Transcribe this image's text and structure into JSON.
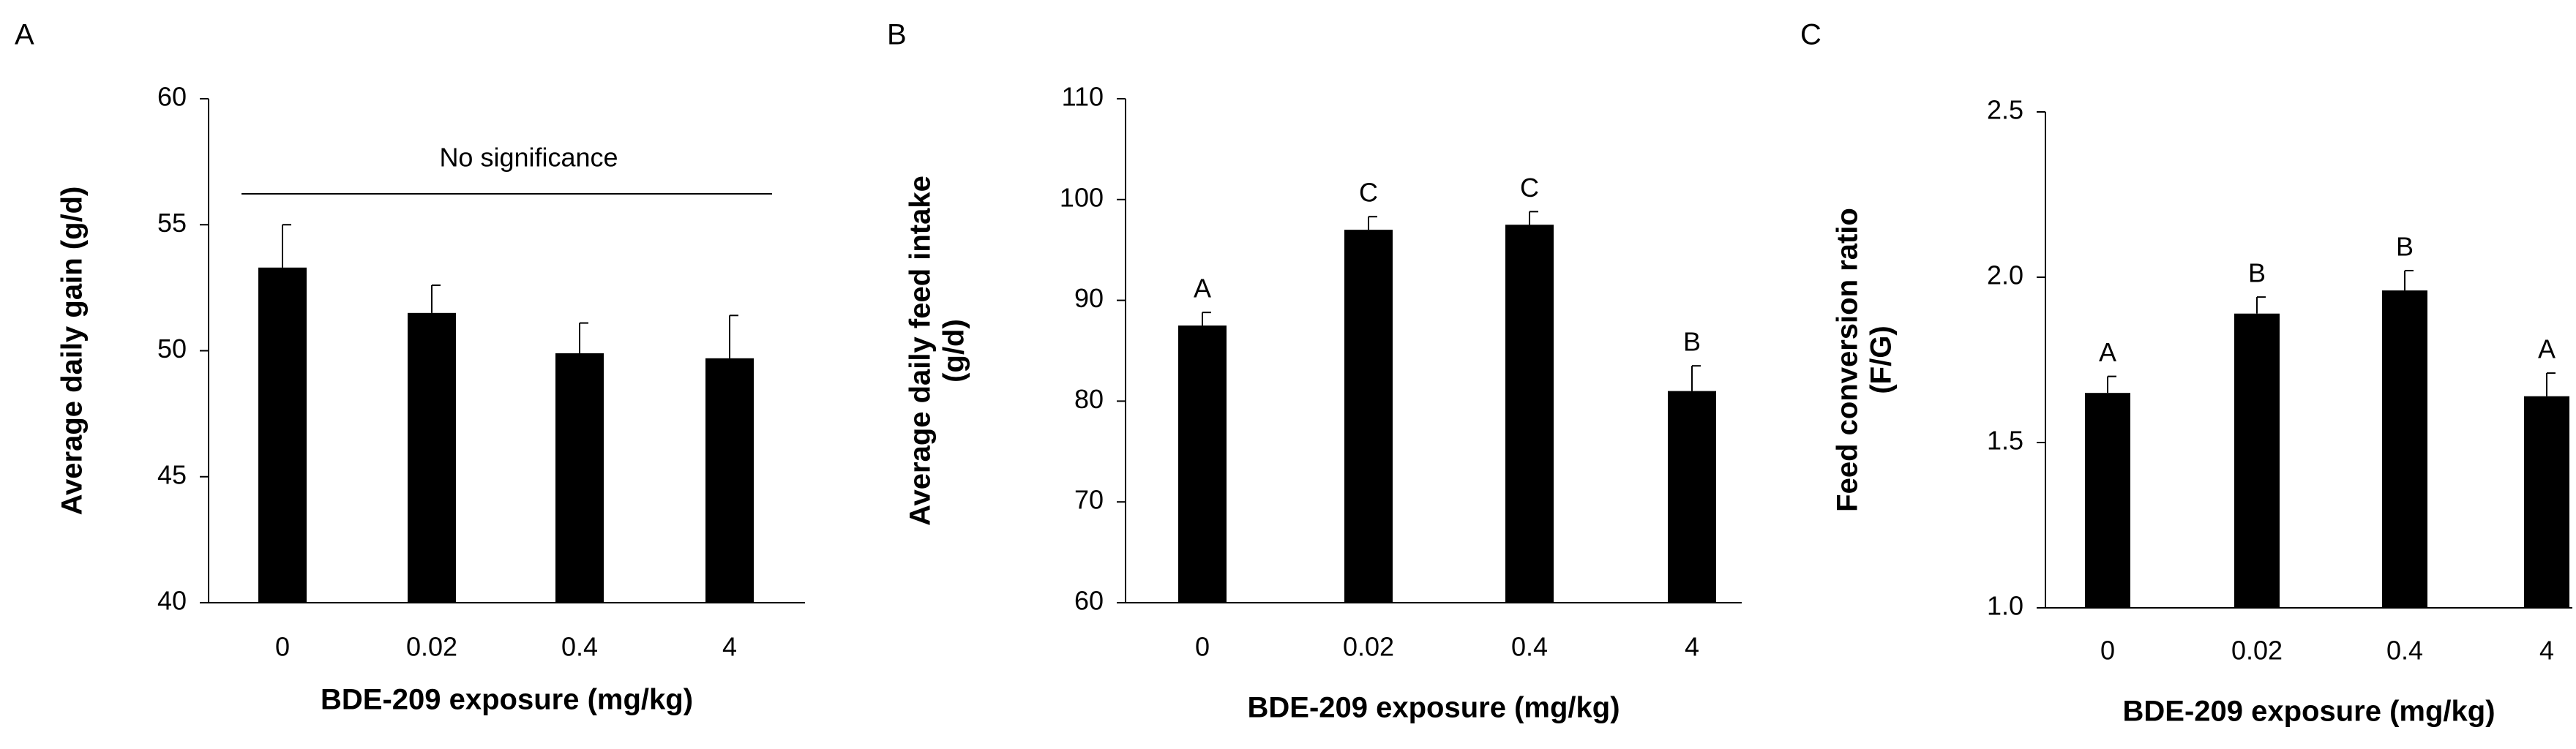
{
  "chart_data": [
    {
      "type": "bar",
      "panel_label": "A",
      "y_label": "Average daily gain (g/d)",
      "x_label": "BDE-209 exposure (mg/kg)",
      "annotation": "No significance",
      "categories": [
        "0",
        "0.02",
        "0.4",
        "4"
      ],
      "values": [
        53.3,
        51.5,
        49.9,
        49.7
      ],
      "errors": [
        1.7,
        1.1,
        1.2,
        1.7
      ],
      "ylim": [
        40,
        60
      ],
      "yticks": [
        40,
        45,
        50,
        55,
        60
      ],
      "color": "#000000"
    },
    {
      "type": "bar",
      "panel_label": "B",
      "y_label": [
        "Average daily feed intake",
        "(g/d)"
      ],
      "x_label": "BDE-209 exposure (mg/kg)",
      "categories": [
        "0",
        "0.02",
        "0.4",
        "4"
      ],
      "values": [
        87.5,
        97,
        97.5,
        81
      ],
      "errors": [
        1.3,
        1.3,
        1.3,
        2.5
      ],
      "letters": [
        "A",
        "C",
        "C",
        "B"
      ],
      "ylim": [
        60,
        110
      ],
      "yticks": [
        60,
        70,
        80,
        90,
        100,
        110
      ],
      "color": "#000000"
    },
    {
      "type": "bar",
      "panel_label": "C",
      "y_label": [
        "Feed conversion ratio",
        "(F/G)"
      ],
      "x_label": "BDE-209 exposure (mg/kg)",
      "categories": [
        "0",
        "0.02",
        "0.4",
        "4"
      ],
      "values": [
        1.65,
        1.89,
        1.96,
        1.64
      ],
      "errors": [
        0.05,
        0.05,
        0.06,
        0.07
      ],
      "letters": [
        "A",
        "B",
        "B",
        "A"
      ],
      "ylim": [
        1.0,
        2.5
      ],
      "yticks": [
        {
          "value": 1.0,
          "label": "1.0"
        },
        {
          "value": 1.5,
          "label": "1.5"
        },
        {
          "value": 2.0,
          "label": "2.0"
        },
        {
          "value": 2.5,
          "label": "2.5"
        }
      ],
      "color": "#000000"
    }
  ]
}
